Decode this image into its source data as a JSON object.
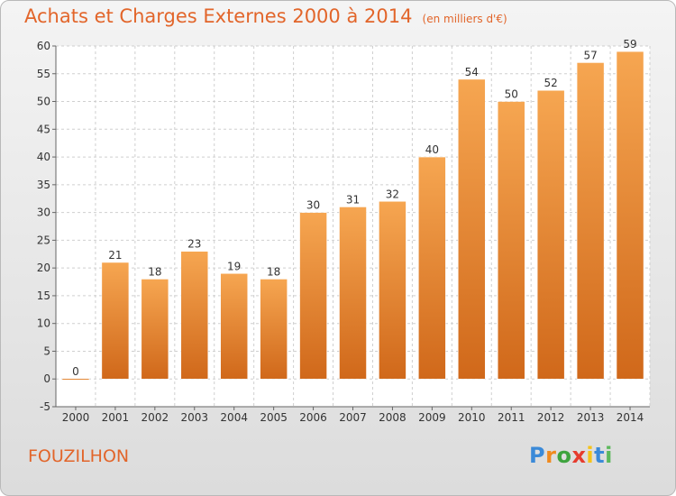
{
  "chart_data": {
    "type": "bar",
    "title": "Achats et Charges Externes 2000 à 2014",
    "subtitle": "(en milliers d'€)",
    "categories": [
      "2000",
      "2001",
      "2002",
      "2003",
      "2004",
      "2005",
      "2006",
      "2007",
      "2008",
      "2009",
      "2010",
      "2011",
      "2012",
      "2013",
      "2014"
    ],
    "values": [
      0,
      21,
      18,
      23,
      19,
      18,
      30,
      31,
      32,
      40,
      54,
      50,
      52,
      57,
      59
    ],
    "ylim": [
      -5,
      60
    ],
    "yticks": [
      -5,
      0,
      5,
      10,
      15,
      20,
      25,
      30,
      35,
      40,
      45,
      50,
      55,
      60
    ],
    "grid": true,
    "bar_color": "#f0913a"
  },
  "place_name": "FOUZILHON",
  "brand": {
    "letters": [
      "P",
      "r",
      "o",
      "x",
      "i",
      "t",
      "i"
    ],
    "colors": [
      "#3b8ad8",
      "#f08a1e",
      "#3ea33e",
      "#e63c2e",
      "#f5c31a",
      "#3b8ad8",
      "#5cb85c"
    ]
  }
}
